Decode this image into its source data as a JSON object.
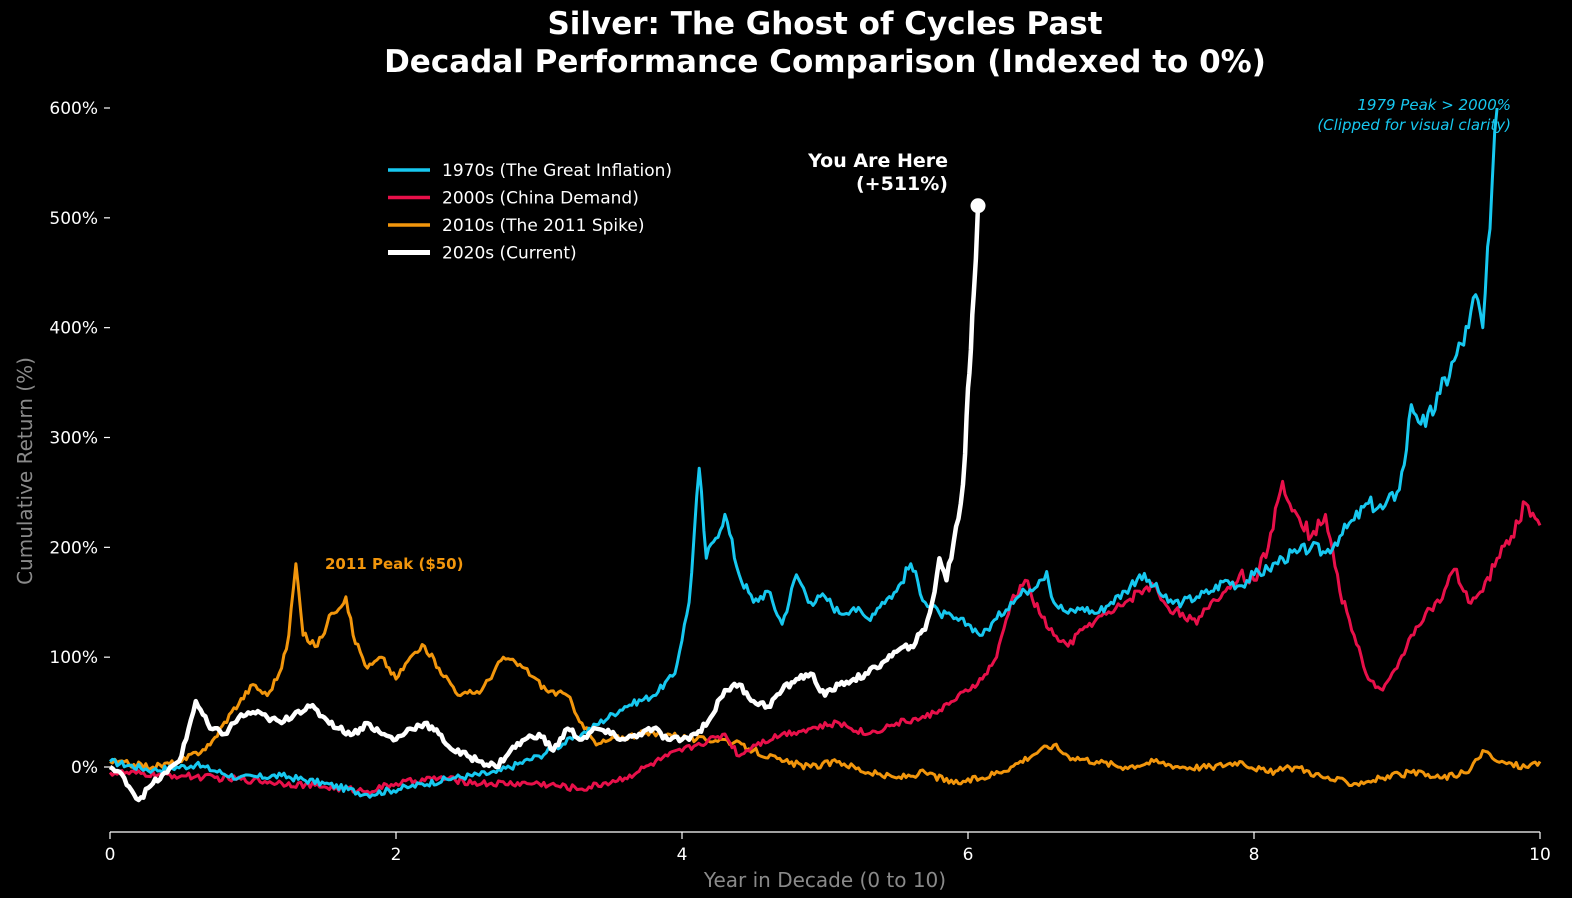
{
  "chart_data": {
    "type": "line",
    "title": "Silver: The Ghost of Cycles Past",
    "subtitle": "Decadal Performance Comparison (Indexed to 0%)",
    "xlabel": "Year in Decade (0 to 10)",
    "ylabel": "Cumulative Return (%)",
    "xlim": [
      0,
      10
    ],
    "ylim": [
      -58,
      615
    ],
    "x_ticks": [
      "0",
      "2",
      "4",
      "6",
      "8",
      "10"
    ],
    "y_ticks": [
      "0%",
      "100%",
      "200%",
      "300%",
      "400%",
      "500%",
      "600%"
    ],
    "grid": false,
    "legend_position": "upper-left",
    "series": [
      {
        "name": "1970s (The Great Inflation)",
        "color": "#17c8f0",
        "x": [
          0,
          0.3,
          0.6,
          0.9,
          1.2,
          1.5,
          1.8,
          2.1,
          2.4,
          2.7,
          3.0,
          3.3,
          3.6,
          3.8,
          3.95,
          4.05,
          4.12,
          4.17,
          4.22,
          4.3,
          4.4,
          4.5,
          4.6,
          4.7,
          4.8,
          4.9,
          5.0,
          5.1,
          5.2,
          5.3,
          5.4,
          5.5,
          5.6,
          5.7,
          5.8,
          5.9,
          6.0,
          6.1,
          6.2,
          6.3,
          6.4,
          6.5,
          6.55,
          6.6,
          6.7,
          6.8,
          6.9,
          7.0,
          7.1,
          7.2,
          7.3,
          7.4,
          7.5,
          7.6,
          7.7,
          7.8,
          7.9,
          8.0,
          8.1,
          8.2,
          8.3,
          8.4,
          8.5,
          8.6,
          8.7,
          8.8,
          8.9,
          9.0,
          9.05,
          9.1,
          9.2,
          9.3,
          9.4,
          9.5,
          9.55,
          9.6,
          9.65,
          9.7
        ],
        "values": [
          5,
          -3,
          2,
          -10,
          -8,
          -15,
          -25,
          -18,
          -10,
          -5,
          10,
          30,
          55,
          65,
          85,
          150,
          272,
          190,
          205,
          230,
          175,
          150,
          160,
          130,
          175,
          150,
          155,
          140,
          145,
          135,
          150,
          160,
          185,
          150,
          140,
          135,
          130,
          120,
          135,
          150,
          160,
          170,
          178,
          150,
          140,
          145,
          140,
          150,
          160,
          175,
          165,
          150,
          150,
          155,
          160,
          170,
          165,
          175,
          180,
          190,
          195,
          200,
          195,
          210,
          225,
          240,
          235,
          250,
          275,
          330,
          310,
          340,
          370,
          400,
          430,
          400,
          490,
          600
        ]
      },
      {
        "name": "2000s (China Demand)",
        "color": "#e8104a",
        "x": [
          0,
          0.5,
          1.0,
          1.5,
          1.8,
          2.0,
          2.3,
          2.6,
          3.0,
          3.3,
          3.6,
          3.9,
          4.1,
          4.3,
          4.4,
          4.5,
          4.7,
          4.9,
          5.1,
          5.3,
          5.5,
          5.7,
          5.9,
          6.1,
          6.2,
          6.3,
          6.4,
          6.5,
          6.6,
          6.7,
          6.8,
          6.9,
          7.0,
          7.1,
          7.2,
          7.3,
          7.4,
          7.5,
          7.6,
          7.7,
          7.8,
          7.9,
          8.0,
          8.1,
          8.2,
          8.3,
          8.4,
          8.5,
          8.6,
          8.7,
          8.8,
          8.9,
          9.0,
          9.1,
          9.2,
          9.3,
          9.4,
          9.5,
          9.6,
          9.7,
          9.8,
          9.9,
          10.0
        ],
        "values": [
          -5,
          -8,
          -12,
          -18,
          -22,
          -15,
          -10,
          -15,
          -15,
          -20,
          -10,
          10,
          20,
          30,
          10,
          20,
          30,
          35,
          40,
          30,
          40,
          45,
          60,
          80,
          100,
          150,
          170,
          140,
          120,
          110,
          125,
          135,
          140,
          150,
          160,
          165,
          145,
          140,
          130,
          150,
          160,
          175,
          170,
          200,
          260,
          230,
          210,
          230,
          160,
          120,
          80,
          70,
          90,
          120,
          140,
          150,
          180,
          150,
          160,
          190,
          210,
          240,
          220
        ]
      },
      {
        "name": "2010s (The 2011 Spike)",
        "color": "#f2960c",
        "x": [
          0,
          0.3,
          0.5,
          0.7,
          0.85,
          1.0,
          1.1,
          1.2,
          1.25,
          1.3,
          1.35,
          1.45,
          1.55,
          1.65,
          1.7,
          1.8,
          1.9,
          2.0,
          2.1,
          2.2,
          2.3,
          2.45,
          2.6,
          2.75,
          2.9,
          3.05,
          3.2,
          3.3,
          3.4,
          3.5,
          3.7,
          3.9,
          4.1,
          4.3,
          4.5,
          4.7,
          4.9,
          5.1,
          5.3,
          5.5,
          5.7,
          5.9,
          6.1,
          6.3,
          6.5,
          6.6,
          6.7,
          6.9,
          7.1,
          7.3,
          7.5,
          7.7,
          7.9,
          8.1,
          8.3,
          8.5,
          8.7,
          8.9,
          9.1,
          9.3,
          9.5,
          9.6,
          9.7,
          9.9,
          10.0
        ],
        "values": [
          5,
          0,
          5,
          20,
          50,
          75,
          65,
          90,
          120,
          185,
          120,
          110,
          140,
          155,
          120,
          90,
          100,
          80,
          100,
          110,
          90,
          65,
          70,
          100,
          90,
          70,
          65,
          40,
          20,
          25,
          30,
          30,
          25,
          25,
          15,
          5,
          0,
          5,
          -5,
          -10,
          -5,
          -15,
          -10,
          0,
          15,
          20,
          10,
          5,
          0,
          5,
          0,
          0,
          5,
          -5,
          0,
          -10,
          -15,
          -10,
          -5,
          -10,
          -5,
          15,
          5,
          0,
          5
        ]
      },
      {
        "name": "2020s (Current)",
        "color": "#ffffff",
        "x": [
          0,
          0.1,
          0.2,
          0.3,
          0.4,
          0.5,
          0.6,
          0.7,
          0.8,
          0.9,
          1.0,
          1.1,
          1.2,
          1.3,
          1.4,
          1.5,
          1.6,
          1.7,
          1.8,
          1.9,
          2.0,
          2.1,
          2.2,
          2.3,
          2.4,
          2.5,
          2.6,
          2.7,
          2.8,
          2.9,
          3.0,
          3.1,
          3.2,
          3.3,
          3.4,
          3.5,
          3.6,
          3.7,
          3.8,
          3.9,
          4.0,
          4.1,
          4.2,
          4.3,
          4.4,
          4.5,
          4.6,
          4.7,
          4.8,
          4.9,
          5.0,
          5.1,
          5.2,
          5.3,
          5.4,
          5.5,
          5.6,
          5.7,
          5.75,
          5.8,
          5.85,
          5.9,
          5.95,
          5.98,
          6.0,
          6.02,
          6.04,
          6.07
        ],
        "values": [
          0,
          -10,
          -30,
          -15,
          -5,
          10,
          60,
          35,
          30,
          45,
          50,
          45,
          40,
          50,
          55,
          45,
          35,
          30,
          40,
          30,
          25,
          35,
          40,
          30,
          15,
          10,
          5,
          0,
          15,
          25,
          30,
          15,
          35,
          25,
          35,
          30,
          25,
          30,
          35,
          25,
          25,
          30,
          45,
          70,
          75,
          60,
          55,
          70,
          80,
          85,
          65,
          75,
          80,
          85,
          95,
          105,
          110,
          125,
          150,
          190,
          170,
          205,
          240,
          285,
          345,
          380,
          430,
          511
        ]
      }
    ],
    "annotations": {
      "you_are_here": "You Are Here",
      "you_are_here_value": "(+511%)",
      "peak_2011": "2011 Peak ($50)",
      "peak_1979_line1": "1979 Peak > 2000%",
      "peak_1979_line2": "(Clipped for visual clarity)"
    }
  }
}
